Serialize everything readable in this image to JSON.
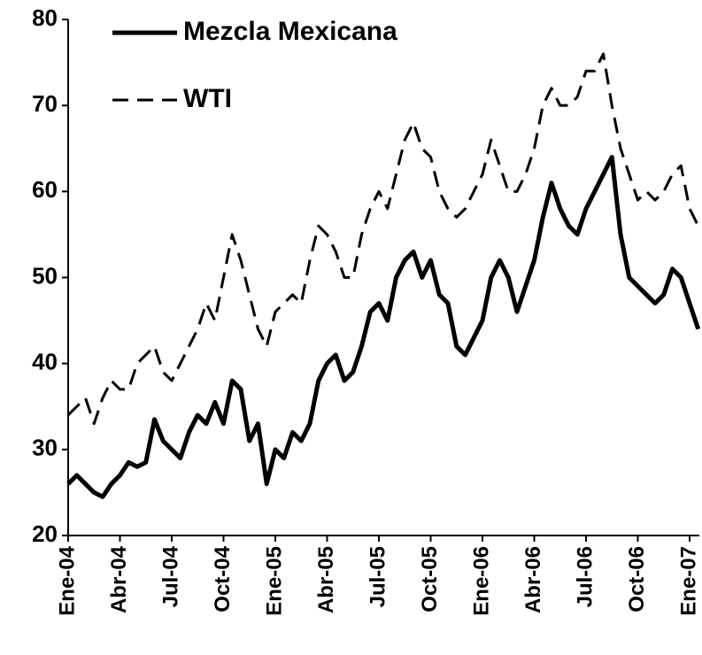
{
  "chart_data": {
    "type": "line",
    "categories": [
      "Ene-04",
      null,
      null,
      null,
      null,
      null,
      "Abr-04",
      null,
      null,
      null,
      null,
      null,
      "Jul-04",
      null,
      null,
      null,
      null,
      null,
      "Oct-04",
      null,
      null,
      null,
      null,
      null,
      "Ene-05",
      null,
      null,
      null,
      null,
      null,
      "Abr-05",
      null,
      null,
      null,
      null,
      null,
      "Jul-05",
      null,
      null,
      null,
      null,
      null,
      "Oct-05",
      null,
      null,
      null,
      null,
      null,
      "Ene-06",
      null,
      null,
      null,
      null,
      null,
      "Abr-06",
      null,
      null,
      null,
      null,
      null,
      "Jul-06",
      null,
      null,
      null,
      null,
      null,
      "Oct-06",
      null,
      null,
      null,
      null,
      null,
      "Ene-07",
      null
    ],
    "series": [
      {
        "name": "Mezcla Mexicana",
        "color": "#000000",
        "values": [
          26,
          27,
          26,
          25,
          24.5,
          26,
          27,
          28.5,
          28,
          28.5,
          33.5,
          31,
          30,
          29,
          32,
          34,
          33,
          35.5,
          33,
          38,
          37,
          31,
          33,
          26,
          30,
          29,
          32,
          31,
          33,
          38,
          40,
          41,
          38,
          39,
          42,
          46,
          47,
          45,
          50,
          52,
          53,
          50,
          52,
          48,
          47,
          42,
          41,
          43,
          45,
          50,
          52,
          50,
          46,
          49,
          52,
          57,
          61,
          58,
          56,
          55,
          58,
          60,
          62,
          64,
          55,
          50,
          49,
          48,
          47,
          48,
          51,
          50,
          47,
          44
        ]
      },
      {
        "name": "WTI",
        "color": "#000000",
        "values": [
          34,
          35,
          36,
          33,
          36,
          38,
          37,
          37,
          40,
          41,
          42,
          39,
          38,
          40,
          42,
          44,
          47,
          45,
          50,
          55,
          52,
          48,
          44,
          42,
          46,
          47,
          48,
          47,
          52,
          56,
          55,
          53,
          50,
          50,
          55,
          58,
          60,
          58,
          62,
          66,
          68,
          65,
          64,
          60,
          58,
          57,
          58,
          60,
          62,
          66,
          63,
          60,
          60,
          62,
          65,
          70,
          72,
          70,
          70,
          71,
          74,
          74,
          76,
          70,
          65,
          62,
          59,
          60,
          59,
          60,
          62,
          63,
          58,
          56
        ]
      }
    ],
    "ylim": [
      20,
      80
    ],
    "yticks": [
      20,
      30,
      40,
      50,
      60,
      70,
      80
    ],
    "grid": false
  }
}
